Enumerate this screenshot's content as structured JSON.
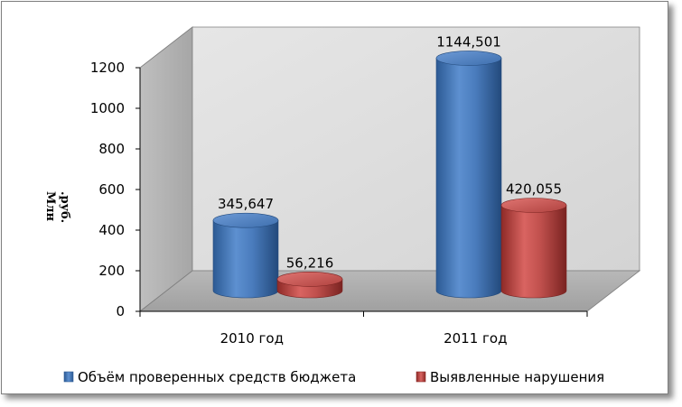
{
  "chart_data": {
    "type": "bar",
    "style": "3d-cylinder",
    "title": "",
    "xlabel": "",
    "ylabel_lines": [
      "Млн",
      ".руб."
    ],
    "categories": [
      "2010 год",
      "2011 год"
    ],
    "ylim": [
      0,
      1200
    ],
    "yticks": [
      0,
      200,
      400,
      600,
      800,
      1000,
      1200
    ],
    "grid": false,
    "legend_position": "bottom",
    "series": [
      {
        "name": "Объём проверенных средств бюджета",
        "values": [
          345.647,
          1144.501
        ],
        "labels": [
          "345,647",
          "1144,501"
        ],
        "color": "#4f81bd"
      },
      {
        "name": "Выявленные нарушения",
        "values": [
          56.216,
          420.055
        ],
        "labels": [
          "56,216",
          "420,055"
        ],
        "color": "#c0504d"
      }
    ]
  }
}
